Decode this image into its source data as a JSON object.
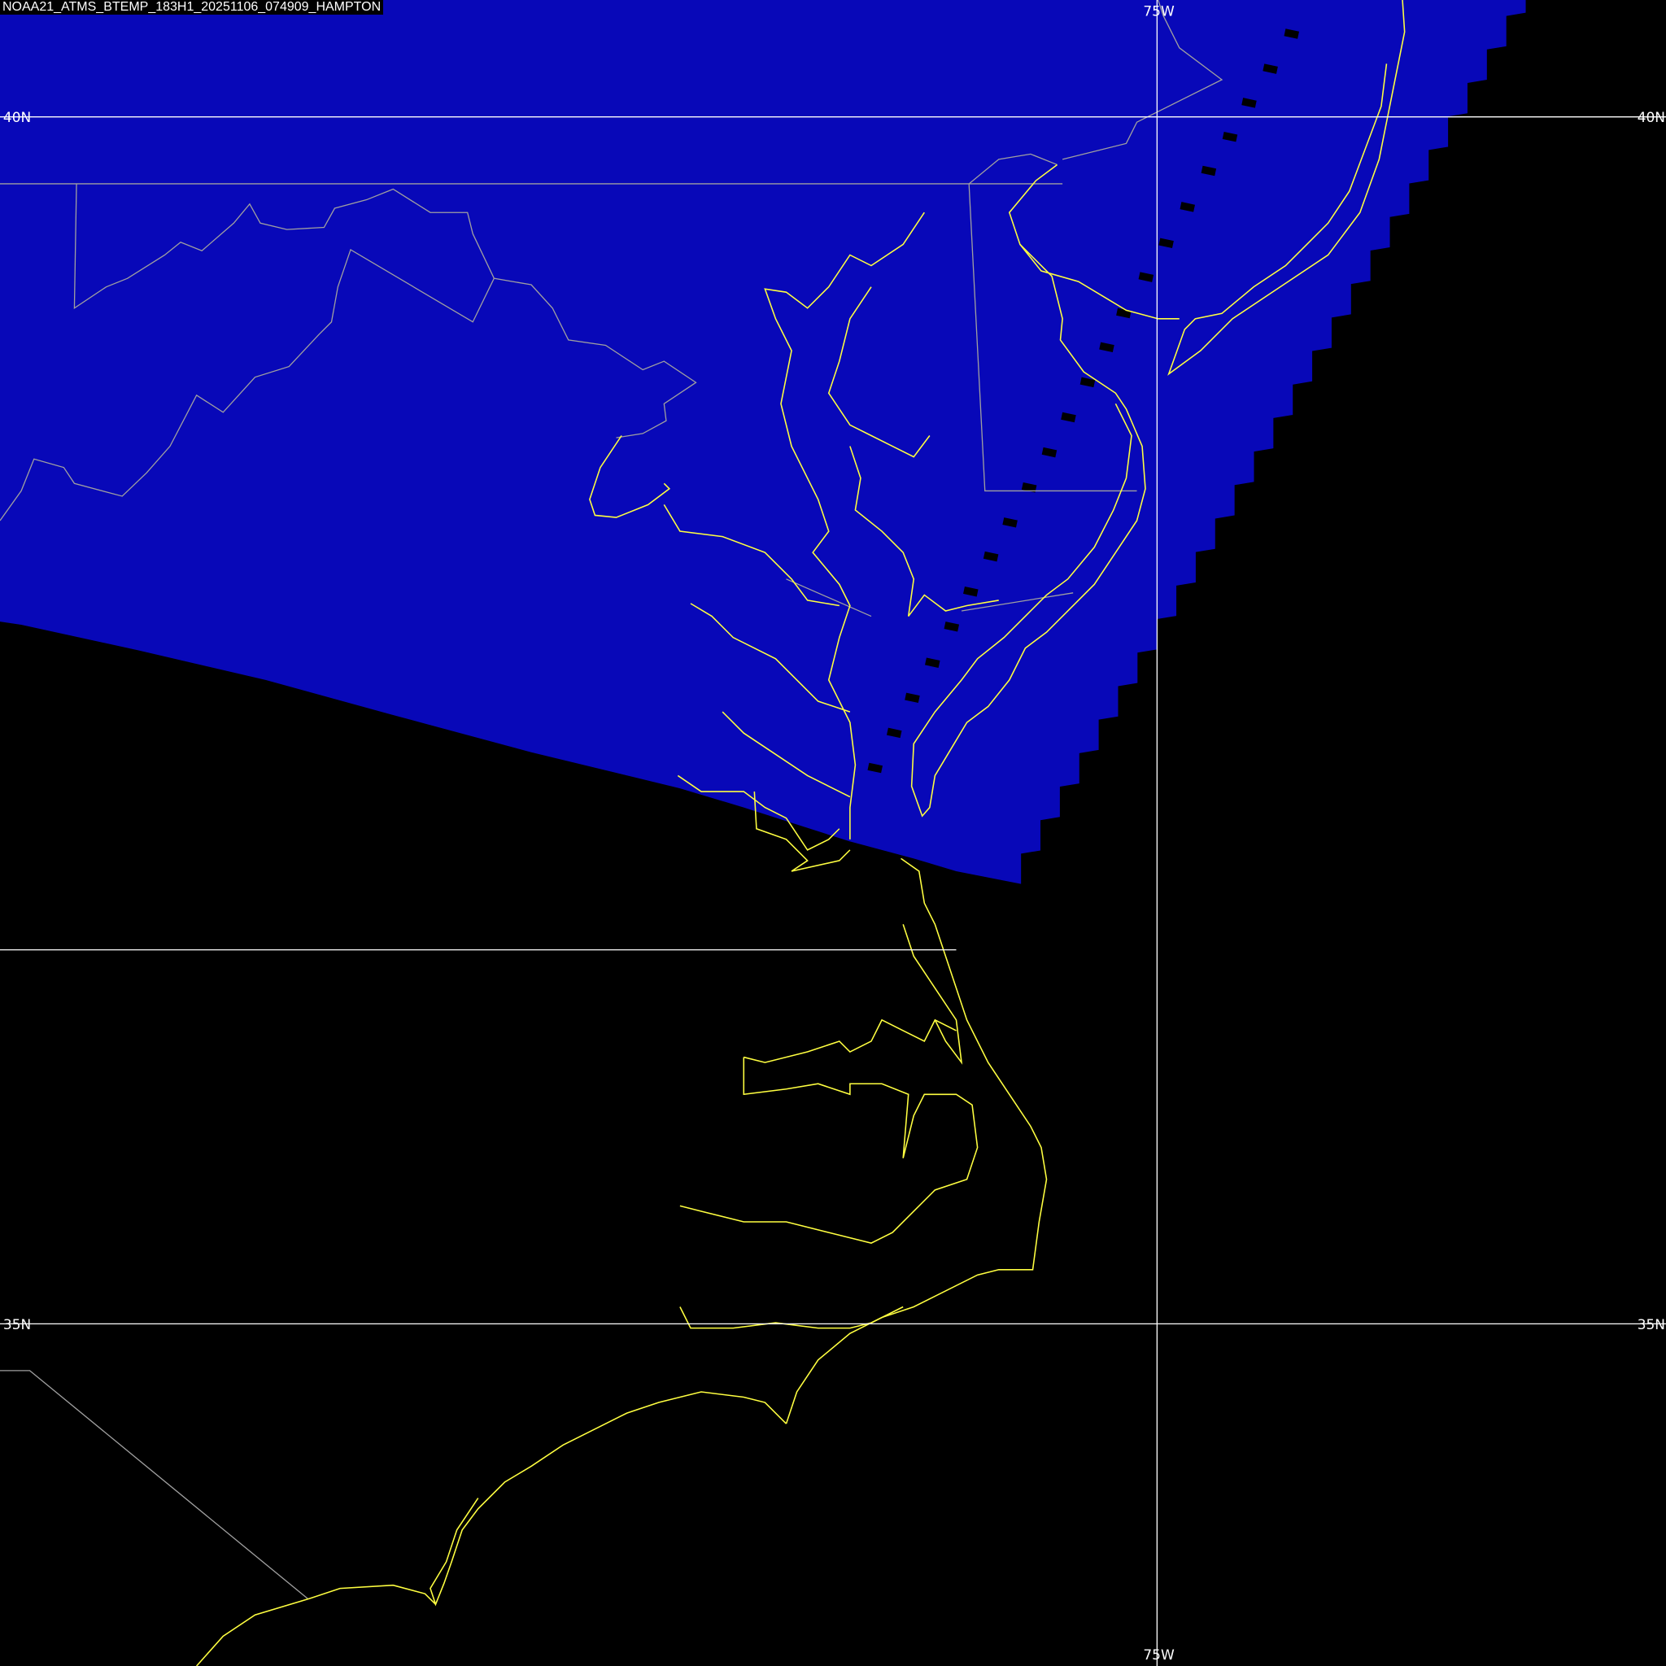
{
  "title": "NOAA21_ATMS_BTEMP_183H1_20251106_074909_HAMPTON",
  "grid": {
    "lat_labels": [
      "40N",
      "35N"
    ],
    "lon_labels": [
      "75W"
    ]
  },
  "colors": {
    "swath": "#0808b8",
    "background": "#000000",
    "coastline": "#ffff40",
    "state_border": "#a0a0a0",
    "grid": "#ffffff"
  }
}
